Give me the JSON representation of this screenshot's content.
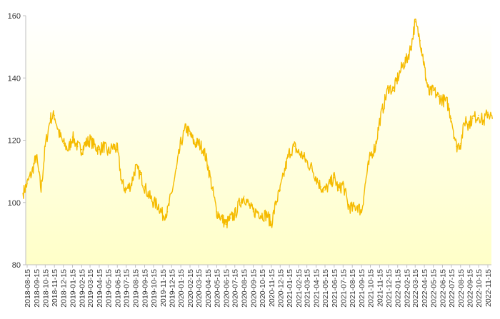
{
  "chart_data": {
    "type": "line",
    "title": "",
    "xlabel": "",
    "ylabel": "",
    "ylim": [
      80,
      160
    ],
    "y_ticks": [
      80,
      100,
      120,
      140,
      160
    ],
    "grid": false,
    "legend": "none",
    "colors": {
      "line": "#F5BB00",
      "background_top": "#FFFFFF",
      "background_bottom": "#FFFFC8",
      "axis": "#BFBFBF"
    },
    "x_tick_labels": [
      "2018-08-15",
      "2018-09-15",
      "2018-10-15",
      "2018-11-15",
      "2018-12-15",
      "2019-01-15",
      "2019-02-15",
      "2019-03-15",
      "2019-04-15",
      "2019-05-15",
      "2019-06-15",
      "2019-07-15",
      "2019-08-15",
      "2019-09-15",
      "2019-10-15",
      "2019-11-15",
      "2019-12-15",
      "2020-01-15",
      "2020-02-15",
      "2020-03-15",
      "2020-04-15",
      "2020-05-15",
      "2020-06-15",
      "2020-07-15",
      "2020-08-15",
      "2020-09-15",
      "2020-10-15",
      "2020-11-15",
      "2020-12-15",
      "2021-01-15",
      "2021-02-15",
      "2021-03-15",
      "2021-04-15",
      "2021-05-15",
      "2021-06-15",
      "2021-07-15",
      "2021-08-15",
      "2021-09-15",
      "2021-10-15",
      "2021-11-15",
      "2021-12-15",
      "2022-01-15",
      "2022-02-15",
      "2022-03-15",
      "2022-04-15",
      "2022-05-15",
      "2022-06-15",
      "2022-07-15",
      "2022-08-15",
      "2022-09-15",
      "2022-10-15",
      "2022-11-15"
    ],
    "series": [
      {
        "x": [
          "2018-08-01",
          "2018-08-15",
          "2018-09-01",
          "2018-09-15",
          "2018-10-01",
          "2018-10-15",
          "2018-11-01",
          "2018-11-15",
          "2018-12-01",
          "2018-12-15",
          "2019-01-01",
          "2019-01-15",
          "2019-02-01",
          "2019-02-15",
          "2019-03-01",
          "2019-03-15",
          "2019-04-01",
          "2019-04-15",
          "2019-05-01",
          "2019-05-15",
          "2019-06-01",
          "2019-06-15",
          "2019-07-01",
          "2019-07-15",
          "2019-08-01",
          "2019-08-15",
          "2019-09-01",
          "2019-09-15",
          "2019-10-01",
          "2019-10-15",
          "2019-11-01",
          "2019-11-15",
          "2019-12-01",
          "2019-12-15",
          "2020-01-01",
          "2020-01-15",
          "2020-02-01",
          "2020-02-15",
          "2020-03-01",
          "2020-03-15",
          "2020-04-01",
          "2020-04-15",
          "2020-05-01",
          "2020-05-15",
          "2020-06-01",
          "2020-06-15",
          "2020-07-01",
          "2020-07-15",
          "2020-08-01",
          "2020-08-15",
          "2020-09-01",
          "2020-09-15",
          "2020-10-01",
          "2020-10-15",
          "2020-11-01",
          "2020-11-15",
          "2020-12-01",
          "2020-12-15",
          "2021-01-01",
          "2021-01-15",
          "2021-02-01",
          "2021-02-15",
          "2021-03-01",
          "2021-03-15",
          "2021-04-01",
          "2021-04-15",
          "2021-05-01",
          "2021-05-15",
          "2021-06-01",
          "2021-06-15",
          "2021-07-01",
          "2021-07-15",
          "2021-08-01",
          "2021-08-15",
          "2021-09-01",
          "2021-09-15",
          "2021-10-01",
          "2021-10-15",
          "2021-11-01",
          "2021-11-15",
          "2021-12-01",
          "2021-12-15",
          "2022-01-01",
          "2022-01-15",
          "2022-02-01",
          "2022-02-15",
          "2022-03-01",
          "2022-03-15",
          "2022-04-01",
          "2022-04-10",
          "2022-04-20",
          "2022-05-01",
          "2022-05-15",
          "2022-06-01",
          "2022-06-15",
          "2022-07-01",
          "2022-07-15",
          "2022-08-01",
          "2022-08-15",
          "2022-09-01",
          "2022-09-10",
          "2022-09-25",
          "2022-10-15",
          "2022-11-01",
          "2022-11-15",
          "2022-11-30"
        ],
        "values": [
          103,
          106,
          110,
          115,
          104,
          118,
          127,
          128,
          122,
          119,
          117,
          121,
          118,
          117,
          119,
          120,
          118,
          117,
          118,
          116,
          118,
          117,
          106,
          104,
          106,
          111,
          109,
          105,
          102,
          100,
          99,
          96,
          97,
          103,
          111,
          119,
          124,
          122,
          119,
          119,
          117,
          112,
          104,
          97,
          95,
          93,
          95,
          96,
          100,
          102,
          99,
          97,
          97,
          96,
          96,
          93,
          100,
          104,
          111,
          116,
          118,
          116,
          115,
          113,
          111,
          108,
          105,
          104,
          106,
          108,
          104,
          106,
          99,
          98,
          99,
          97,
          108,
          115,
          118,
          126,
          132,
          137,
          136,
          140,
          144,
          146,
          150,
          158,
          152,
          147,
          140,
          135,
          136,
          134,
          133,
          132,
          127,
          118,
          119,
          127,
          125,
          127,
          128,
          126,
          129,
          127
        ]
      }
    ]
  }
}
